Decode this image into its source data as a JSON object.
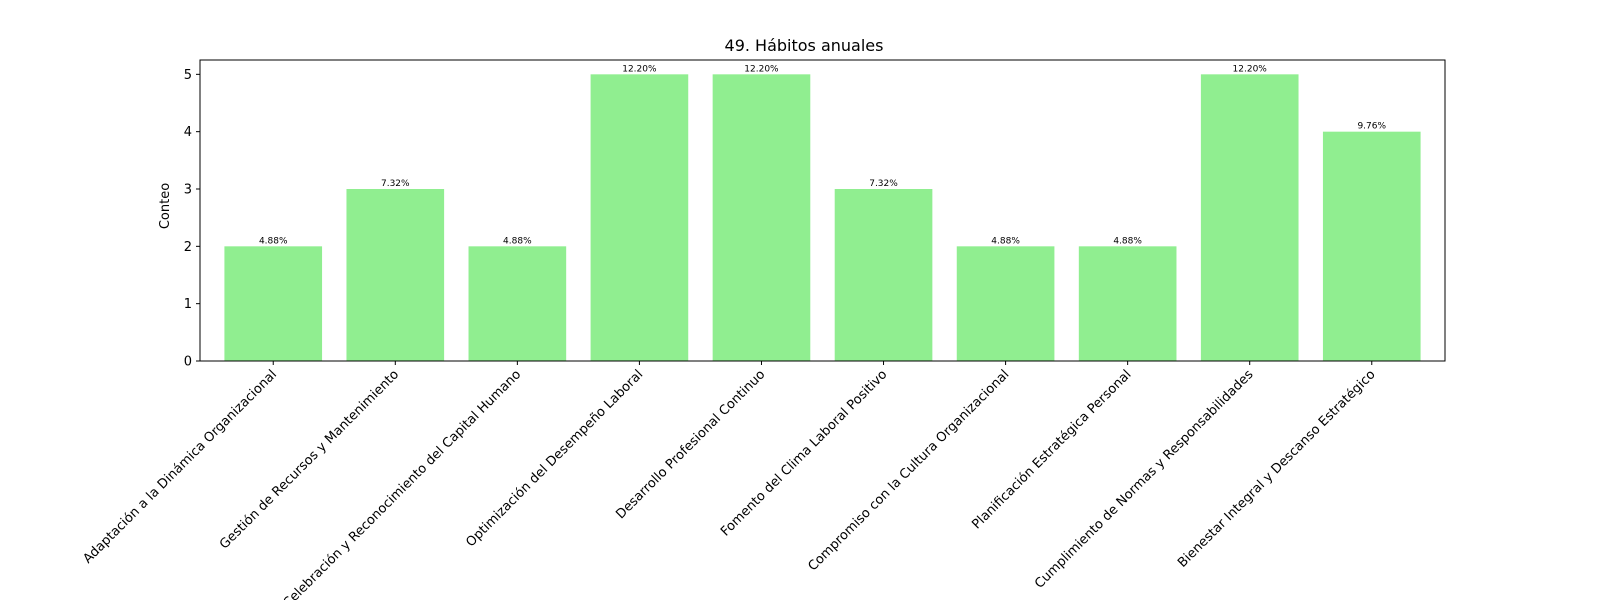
{
  "chart_data": {
    "type": "bar",
    "title": "49. Hábitos anuales",
    "xlabel": "",
    "ylabel": "Conteo",
    "ylim": [
      0,
      5.25
    ],
    "yticks": [
      0,
      1,
      2,
      3,
      4,
      5
    ],
    "categories": [
      "Adaptación a la Dinámica Organizacional",
      "Gestión de Recursos y Mantenimiento",
      "Celebración y Reconocimiento del Capital Humano",
      "Optimización del Desempeño Laboral",
      "Desarrollo Profesional Continuo",
      "Fomento del Clima Laboral Positivo",
      "Compromiso con la Cultura Organizacional",
      "Planificación Estratégica Personal",
      "Cumplimiento de Normas y Responsabilidades",
      "Bienestar Integral y Descanso Estratégico"
    ],
    "values": [
      2,
      3,
      2,
      5,
      5,
      3,
      2,
      2,
      5,
      4
    ],
    "bar_labels": [
      "4.88%",
      "7.32%",
      "4.88%",
      "12.20%",
      "12.20%",
      "7.32%",
      "4.88%",
      "4.88%",
      "12.20%",
      "9.76%"
    ],
    "bar_color": "#90ee90",
    "grid": false,
    "legend": "none"
  }
}
